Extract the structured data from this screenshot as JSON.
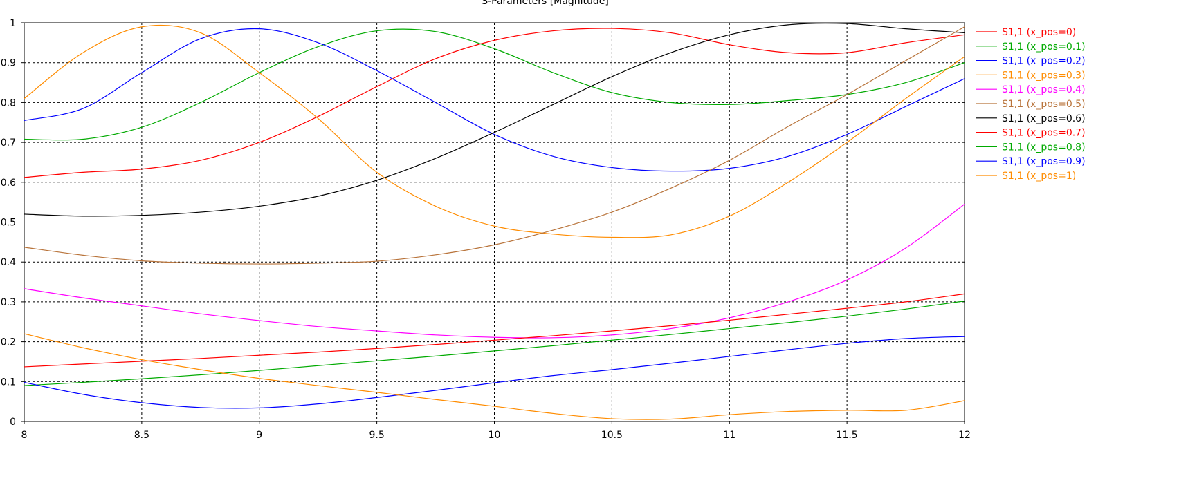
{
  "chart_data": {
    "type": "line",
    "title": "S-Parameters [Magnitude]",
    "xlabel": "",
    "ylabel": "",
    "xlim": [
      8,
      12
    ],
    "ylim": [
      0,
      1
    ],
    "grid": true,
    "legend_position": "right",
    "x_ticks": [
      "8",
      "8.5",
      "9",
      "9.5",
      "10",
      "10.5",
      "11",
      "11.5",
      "12"
    ],
    "y_ticks": [
      "0",
      "0.1",
      "0.2",
      "0.3",
      "0.4",
      "0.5",
      "0.6",
      "0.7",
      "0.8",
      "0.9",
      "1"
    ],
    "x": [
      8,
      8.25,
      8.5,
      8.75,
      9,
      9.25,
      9.5,
      9.75,
      10,
      10.25,
      10.5,
      10.75,
      11,
      11.25,
      11.5,
      11.75,
      12
    ],
    "series": [
      {
        "name": "S1,1 (x_pos=0)",
        "color": "#ff0000",
        "values": [
          0.612,
          0.625,
          0.633,
          0.655,
          0.7,
          0.765,
          0.84,
          0.91,
          0.956,
          0.98,
          0.986,
          0.975,
          0.945,
          0.925,
          0.925,
          0.95,
          0.97
        ]
      },
      {
        "name": "S1,1 (x_pos=0.1)",
        "color": "#00aa00",
        "values": [
          0.708,
          0.708,
          0.738,
          0.8,
          0.875,
          0.94,
          0.98,
          0.978,
          0.935,
          0.875,
          0.825,
          0.8,
          0.795,
          0.805,
          0.82,
          0.85,
          0.9
        ]
      },
      {
        "name": "S1,1 (x_pos=0.2)",
        "color": "#0000ff",
        "values": [
          0.755,
          0.785,
          0.875,
          0.96,
          0.985,
          0.95,
          0.88,
          0.8,
          0.72,
          0.665,
          0.637,
          0.628,
          0.635,
          0.665,
          0.72,
          0.79,
          0.86
        ]
      },
      {
        "name": "S1,1 (x_pos=0.3)",
        "color": "#ff8c00",
        "values": [
          0.81,
          0.925,
          0.99,
          0.975,
          0.875,
          0.76,
          0.625,
          0.54,
          0.49,
          0.47,
          0.462,
          0.468,
          0.515,
          0.6,
          0.7,
          0.81,
          0.915
        ]
      },
      {
        "name": "S1,1 (x_pos=0.4)",
        "color": "#ff00ff",
        "values": [
          0.333,
          0.31,
          0.29,
          0.27,
          0.253,
          0.238,
          0.227,
          0.217,
          0.211,
          0.21,
          0.217,
          0.233,
          0.26,
          0.3,
          0.355,
          0.435,
          0.545
        ]
      },
      {
        "name": "S1,1 (x_pos=0.5)",
        "color": "#b8733a",
        "values": [
          0.437,
          0.417,
          0.403,
          0.397,
          0.395,
          0.397,
          0.402,
          0.418,
          0.443,
          0.48,
          0.525,
          0.585,
          0.655,
          0.74,
          0.82,
          0.905,
          0.99
        ]
      },
      {
        "name": "S1,1 (x_pos=0.6)",
        "color": "#000000",
        "values": [
          0.52,
          0.515,
          0.517,
          0.525,
          0.54,
          0.565,
          0.605,
          0.66,
          0.725,
          0.795,
          0.865,
          0.925,
          0.97,
          0.995,
          0.998,
          0.985,
          0.975
        ]
      },
      {
        "name": "S1,1 (x_pos=0.7)",
        "color": "#ff0000",
        "values": [
          0.137,
          0.144,
          0.151,
          0.158,
          0.166,
          0.174,
          0.183,
          0.193,
          0.204,
          0.215,
          0.227,
          0.24,
          0.254,
          0.269,
          0.284,
          0.3,
          0.32
        ]
      },
      {
        "name": "S1,1 (x_pos=0.8)",
        "color": "#00aa00",
        "values": [
          0.09,
          0.098,
          0.107,
          0.117,
          0.128,
          0.14,
          0.152,
          0.164,
          0.177,
          0.19,
          0.204,
          0.218,
          0.233,
          0.248,
          0.264,
          0.282,
          0.302
        ]
      },
      {
        "name": "S1,1 (x_pos=0.9)",
        "color": "#0000ff",
        "values": [
          0.098,
          0.068,
          0.047,
          0.035,
          0.034,
          0.044,
          0.06,
          0.078,
          0.097,
          0.115,
          0.13,
          0.146,
          0.163,
          0.18,
          0.196,
          0.208,
          0.213
        ]
      },
      {
        "name": "S1,1 (x_pos=1)",
        "color": "#ff8c00",
        "values": [
          0.22,
          0.185,
          0.155,
          0.13,
          0.108,
          0.09,
          0.073,
          0.055,
          0.038,
          0.02,
          0.007,
          0.006,
          0.017,
          0.025,
          0.028,
          0.028,
          0.052
        ]
      }
    ]
  }
}
